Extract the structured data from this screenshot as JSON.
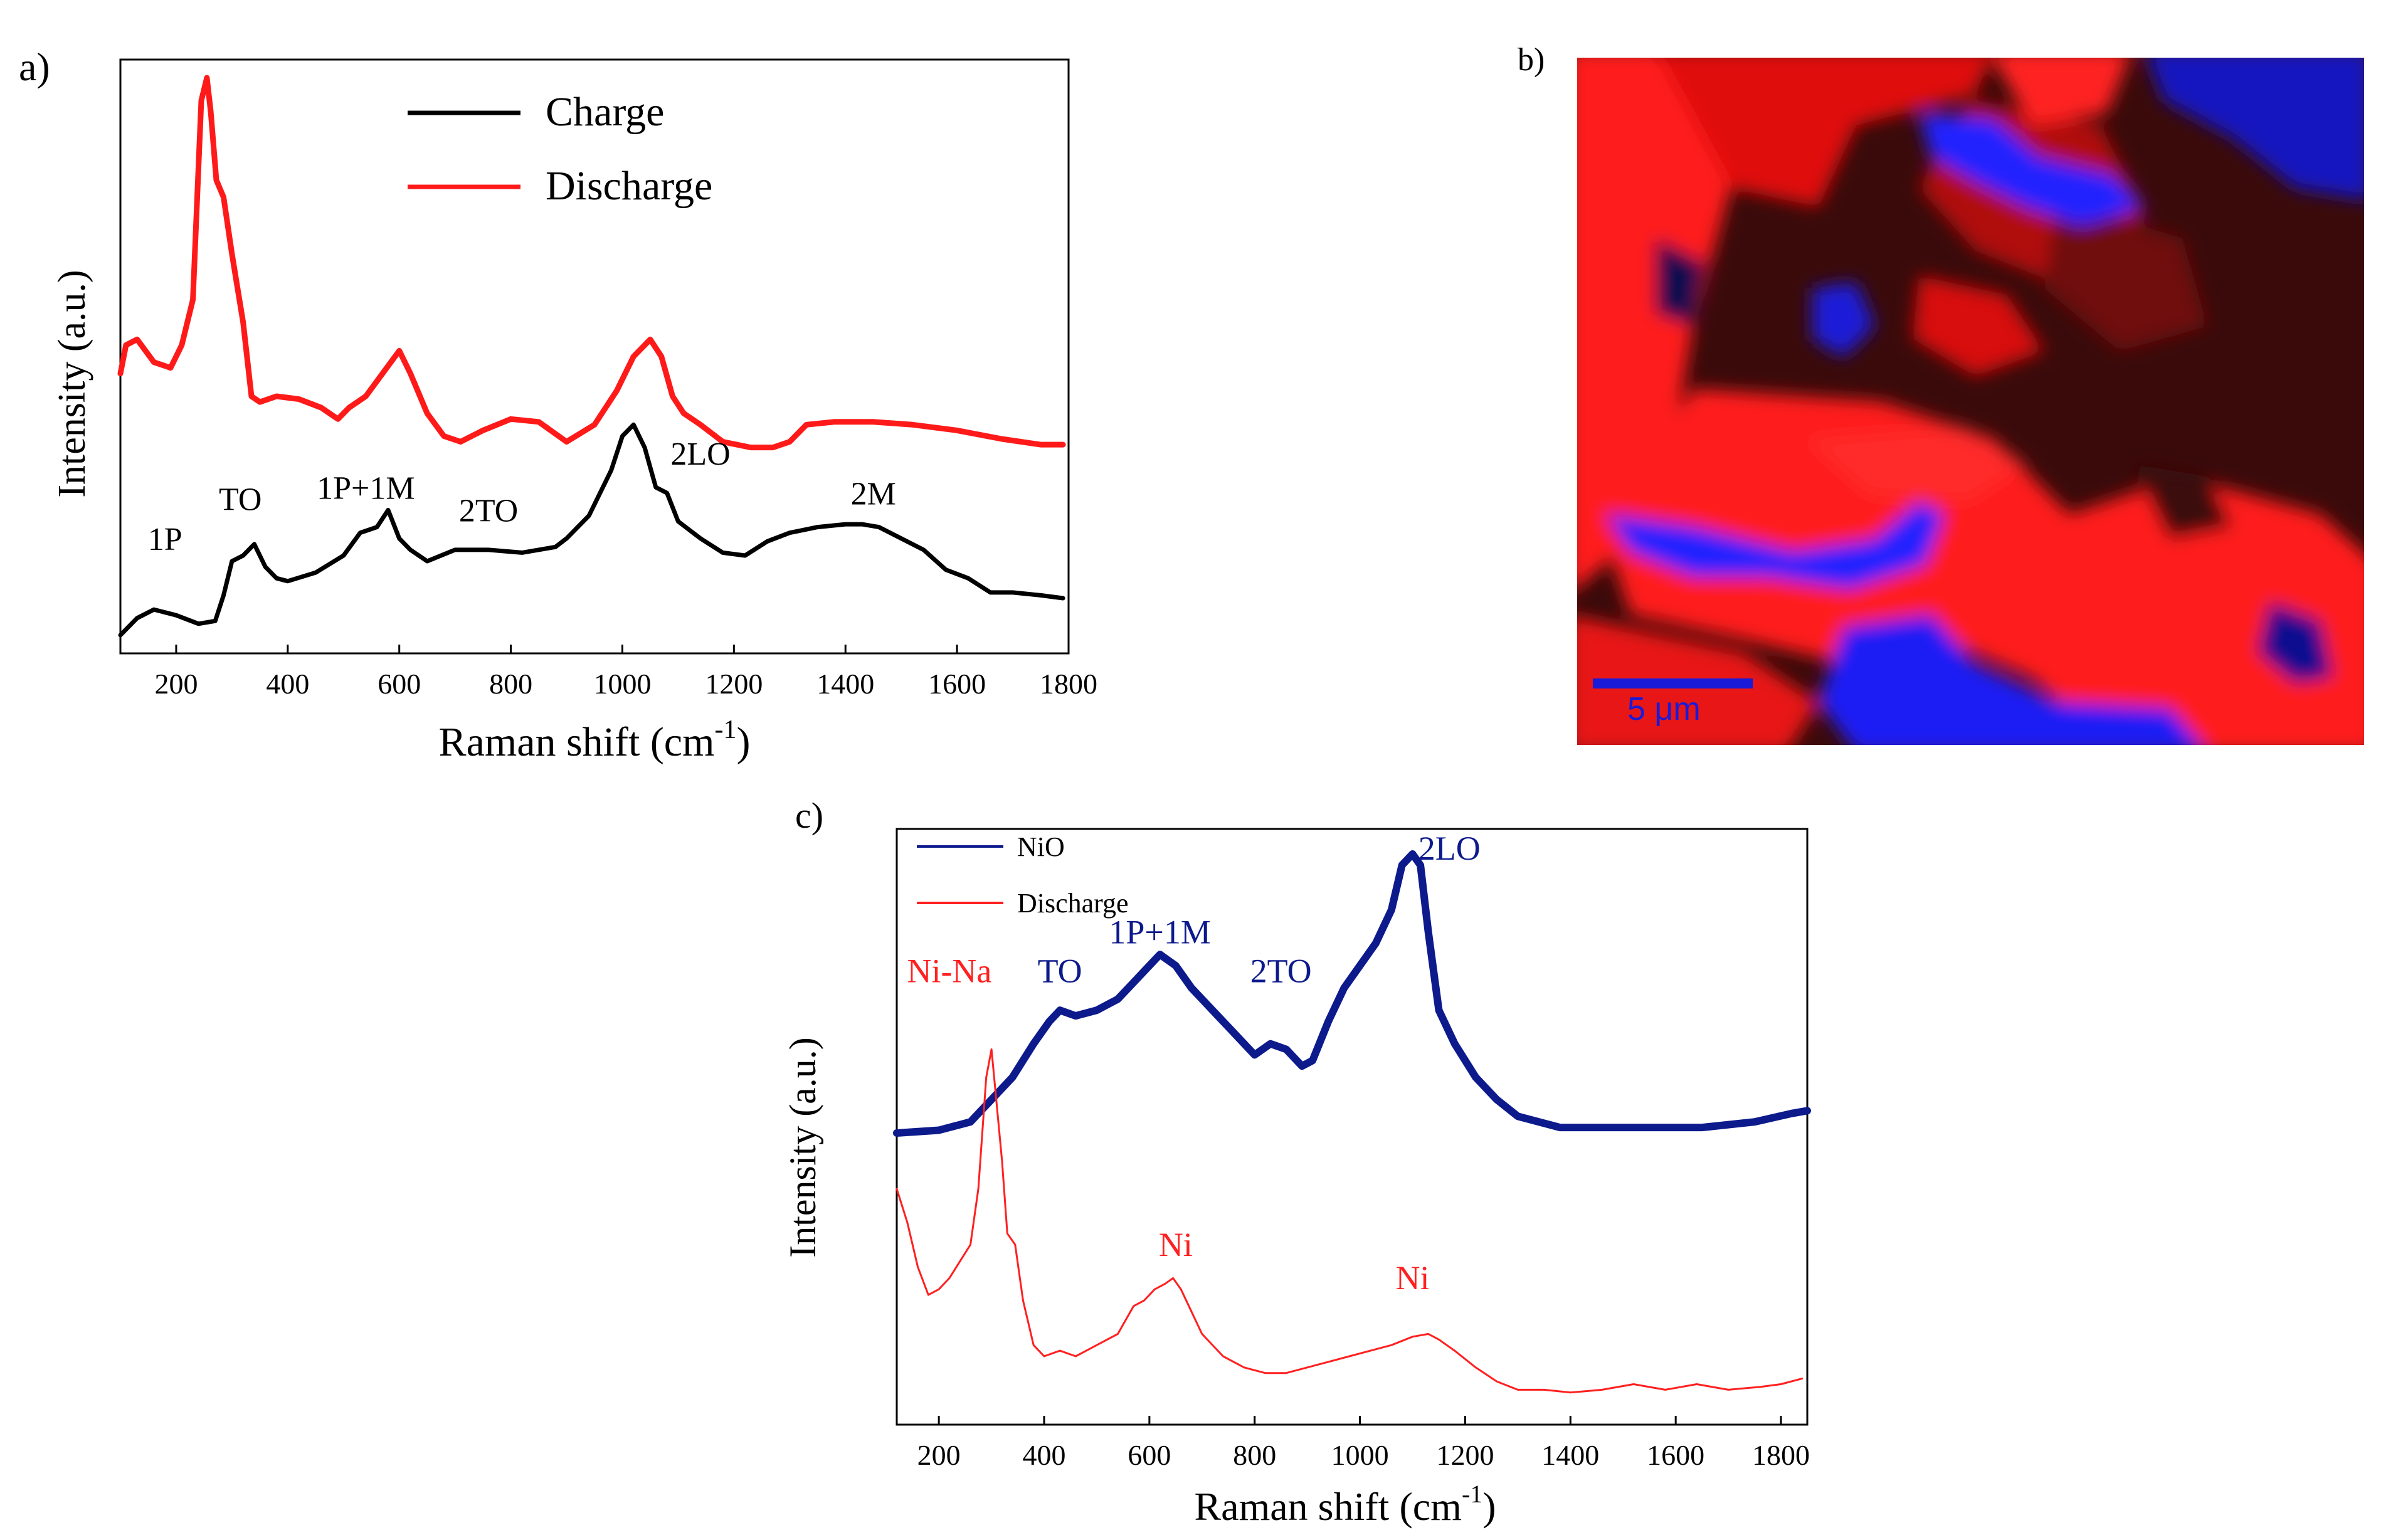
{
  "colors": {
    "charge": "#000000",
    "discharge": "#ff1a1a",
    "nio": "#0d1a8c",
    "discharge_c": "#ff2020",
    "map_red": "#ff1a1a",
    "map_blue": "#1f1ff0",
    "scalebar": "#1a1ad9"
  },
  "panels": {
    "a": "a)",
    "b": "b)",
    "c": "c)"
  },
  "chart_data": [
    {
      "id": "a",
      "type": "line",
      "xlabel": "Raman shift (cm",
      "xlabel_sup": "-1",
      "xlabel_end": ")",
      "ylabel": "Intensity (a.u.)",
      "xlim": [
        100,
        1800
      ],
      "ylim": [
        0,
        1.0
      ],
      "xticks": [
        200,
        400,
        600,
        800,
        1000,
        1200,
        1400,
        1600,
        1800
      ],
      "legend": {
        "placement": "top-center",
        "items": [
          {
            "name": "Charge",
            "color": "#000000"
          },
          {
            "name": "Discharge",
            "color": "#ff1a1a"
          }
        ]
      },
      "series": [
        {
          "name": "Charge",
          "color": "#000000",
          "x": [
            100,
            130,
            160,
            200,
            240,
            270,
            285,
            300,
            320,
            340,
            360,
            380,
            400,
            450,
            500,
            530,
            560,
            580,
            600,
            620,
            650,
            700,
            760,
            820,
            880,
            900,
            940,
            980,
            1000,
            1020,
            1040,
            1060,
            1080,
            1100,
            1140,
            1180,
            1220,
            1260,
            1300,
            1350,
            1400,
            1430,
            1460,
            1500,
            1540,
            1580,
            1620,
            1660,
            1700,
            1750,
            1790
          ],
          "y": [
            0.01,
            0.04,
            0.055,
            0.045,
            0.03,
            0.035,
            0.08,
            0.14,
            0.15,
            0.17,
            0.13,
            0.11,
            0.105,
            0.12,
            0.15,
            0.19,
            0.2,
            0.23,
            0.18,
            0.16,
            0.14,
            0.16,
            0.16,
            0.155,
            0.165,
            0.18,
            0.22,
            0.3,
            0.36,
            0.38,
            0.34,
            0.27,
            0.26,
            0.21,
            0.18,
            0.155,
            0.15,
            0.175,
            0.19,
            0.2,
            0.205,
            0.205,
            0.2,
            0.18,
            0.16,
            0.125,
            0.11,
            0.085,
            0.085,
            0.08,
            0.075
          ]
        },
        {
          "name": "Discharge",
          "color": "#ff1a1a",
          "x": [
            100,
            110,
            130,
            160,
            190,
            210,
            230,
            245,
            255,
            262,
            272,
            285,
            300,
            320,
            335,
            350,
            380,
            420,
            460,
            490,
            510,
            540,
            570,
            600,
            620,
            650,
            680,
            710,
            750,
            800,
            850,
            900,
            950,
            990,
            1020,
            1050,
            1070,
            1090,
            1110,
            1140,
            1180,
            1230,
            1270,
            1300,
            1330,
            1380,
            1450,
            1520,
            1600,
            1680,
            1750,
            1790
          ],
          "y": [
            0.47,
            0.52,
            0.53,
            0.49,
            0.48,
            0.52,
            0.6,
            0.95,
            0.99,
            0.93,
            0.81,
            0.78,
            0.68,
            0.56,
            0.43,
            0.42,
            0.43,
            0.425,
            0.41,
            0.39,
            0.41,
            0.43,
            0.47,
            0.51,
            0.47,
            0.4,
            0.36,
            0.35,
            0.37,
            0.39,
            0.385,
            0.35,
            0.38,
            0.44,
            0.5,
            0.53,
            0.5,
            0.43,
            0.4,
            0.38,
            0.35,
            0.34,
            0.34,
            0.35,
            0.38,
            0.385,
            0.385,
            0.38,
            0.37,
            0.355,
            0.345,
            0.345
          ]
        }
      ],
      "annotations": [
        {
          "text": "1P",
          "x": 180,
          "y": 0.16
        },
        {
          "text": "TO",
          "x": 315,
          "y": 0.23
        },
        {
          "text": "1P+1M",
          "x": 540,
          "y": 0.25
        },
        {
          "text": "2TO",
          "x": 760,
          "y": 0.21
        },
        {
          "text": "2LO",
          "x": 1140,
          "y": 0.31
        },
        {
          "text": "2M",
          "x": 1450,
          "y": 0.24
        }
      ]
    },
    {
      "id": "b",
      "type": "heatmap",
      "description_note": "Raman map",
      "scalebar_label": "5 μm"
    },
    {
      "id": "c",
      "type": "line",
      "xlabel": "Raman shift (cm",
      "xlabel_sup": "-1",
      "xlabel_end": ")",
      "ylabel": "Intensity (a.u.)",
      "xlim": [
        120,
        1850
      ],
      "ylim": [
        0,
        1.0
      ],
      "xticks": [
        200,
        400,
        600,
        800,
        1000,
        1200,
        1400,
        1600,
        1800
      ],
      "legend": {
        "placement": "top-left",
        "items": [
          {
            "name": "NiO",
            "color": "#0d1a8c"
          },
          {
            "name": "Discharge",
            "color": "#ff2020"
          }
        ]
      },
      "series": [
        {
          "name": "NiO",
          "color": "#0d1a8c",
          "x": [
            120,
            200,
            260,
            300,
            340,
            380,
            410,
            430,
            460,
            500,
            540,
            570,
            600,
            620,
            650,
            680,
            720,
            760,
            800,
            830,
            860,
            890,
            910,
            940,
            970,
            1000,
            1030,
            1060,
            1080,
            1100,
            1115,
            1130,
            1150,
            1180,
            1220,
            1260,
            1300,
            1380,
            1500,
            1650,
            1750,
            1820,
            1850
          ],
          "y": [
            0.5,
            0.505,
            0.52,
            0.56,
            0.6,
            0.66,
            0.7,
            0.72,
            0.71,
            0.72,
            0.74,
            0.77,
            0.8,
            0.82,
            0.8,
            0.76,
            0.72,
            0.68,
            0.64,
            0.66,
            0.65,
            0.62,
            0.63,
            0.7,
            0.76,
            0.8,
            0.84,
            0.9,
            0.98,
            1.0,
            0.98,
            0.86,
            0.72,
            0.66,
            0.6,
            0.56,
            0.53,
            0.51,
            0.51,
            0.51,
            0.52,
            0.535,
            0.54
          ]
        },
        {
          "name": "Discharge",
          "color": "#ff2020",
          "x": [
            120,
            140,
            160,
            180,
            200,
            220,
            240,
            260,
            275,
            290,
            300,
            310,
            320,
            330,
            345,
            360,
            380,
            400,
            430,
            460,
            500,
            540,
            570,
            590,
            610,
            630,
            645,
            660,
            680,
            700,
            740,
            780,
            820,
            860,
            900,
            940,
            980,
            1020,
            1060,
            1100,
            1130,
            1150,
            1180,
            1220,
            1260,
            1300,
            1350,
            1400,
            1460,
            1520,
            1580,
            1640,
            1700,
            1760,
            1800,
            1840
          ],
          "y": [
            0.4,
            0.34,
            0.26,
            0.21,
            0.22,
            0.24,
            0.27,
            0.3,
            0.4,
            0.6,
            0.65,
            0.55,
            0.45,
            0.32,
            0.3,
            0.2,
            0.12,
            0.1,
            0.11,
            0.1,
            0.12,
            0.14,
            0.19,
            0.2,
            0.22,
            0.23,
            0.24,
            0.22,
            0.18,
            0.14,
            0.1,
            0.08,
            0.07,
            0.07,
            0.08,
            0.09,
            0.1,
            0.11,
            0.12,
            0.135,
            0.14,
            0.13,
            0.11,
            0.08,
            0.055,
            0.04,
            0.04,
            0.035,
            0.04,
            0.05,
            0.04,
            0.05,
            0.04,
            0.045,
            0.05,
            0.06
          ]
        }
      ],
      "annotations": [
        {
          "text": "Ni-Na",
          "x": 220,
          "y": 0.77,
          "color": "#ff2020"
        },
        {
          "text": "TO",
          "x": 430,
          "y": 0.77,
          "color": "#0d1a8c"
        },
        {
          "text": "1P+1M",
          "x": 620,
          "y": 0.84,
          "color": "#0d1a8c"
        },
        {
          "text": "2TO",
          "x": 850,
          "y": 0.77,
          "color": "#0d1a8c"
        },
        {
          "text": "2LO",
          "x": 1170,
          "y": 0.99,
          "color": "#0d1a8c"
        },
        {
          "text": "Ni",
          "x": 650,
          "y": 0.28,
          "color": "#ff2020"
        },
        {
          "text": "Ni",
          "x": 1100,
          "y": 0.22,
          "color": "#ff2020"
        }
      ]
    }
  ]
}
